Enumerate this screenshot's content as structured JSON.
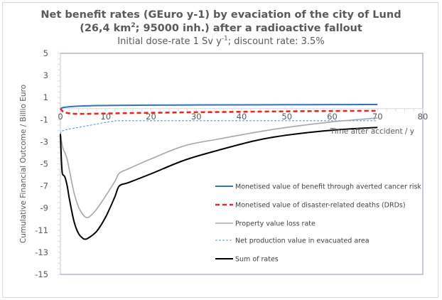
{
  "chart_data": {
    "type": "line",
    "title": "Net benefit rates (GEuro y-1) by evaciation of the city of Lund",
    "title_line2_prefix": "(26,4 km",
    "title_line2_sup": "2",
    "title_line2_suffix": "; 95000 inh.) after a radioactive fallout",
    "subtitle_prefix": "Initial dose-rate 1 Sv y",
    "subtitle_sup": "-1",
    "subtitle_suffix": "; discount rate: 3.5%",
    "xlabel": "Time after accident / y",
    "ylabel": "Cumulative Financial Outcome / Billio Euro",
    "xlim": [
      0,
      80
    ],
    "ylim": [
      -15,
      5
    ],
    "x_ticks": [
      0,
      10,
      20,
      30,
      40,
      50,
      60,
      70,
      80
    ],
    "y_ticks": [
      5,
      3,
      1,
      -1,
      -3,
      -5,
      -7,
      -9,
      -11,
      -13,
      -15
    ],
    "x_tick_labels": [
      "0",
      "10",
      "20",
      "30",
      "40",
      "50",
      "60",
      "70",
      "80"
    ],
    "y_tick_labels": [
      "5",
      "3",
      "1",
      "-1",
      "-3",
      "-5",
      "-7",
      "-9",
      "-11",
      "-13",
      "-15"
    ],
    "grid": false,
    "legend_position": "lower-right",
    "series": [
      {
        "name": "Monetised value of benefit through averted cancer risk",
        "color": "#2e75b6",
        "style": "solid",
        "x": [
          0,
          0.5,
          1,
          2,
          3,
          5,
          8,
          12,
          20,
          30,
          40,
          50,
          60,
          70
        ],
        "y": [
          0,
          0.08,
          0.12,
          0.17,
          0.2,
          0.24,
          0.27,
          0.29,
          0.31,
          0.33,
          0.34,
          0.35,
          0.36,
          0.37
        ]
      },
      {
        "name": "Monetised value of disaster-related deaths (DRDs)",
        "color": "#e8262a",
        "style": "dashed",
        "x": [
          0,
          0.5,
          1,
          2,
          3,
          5,
          8,
          12,
          20,
          30,
          40,
          50,
          60,
          70
        ],
        "y": [
          0,
          -0.25,
          -0.35,
          -0.43,
          -0.47,
          -0.48,
          -0.46,
          -0.43,
          -0.38,
          -0.33,
          -0.29,
          -0.25,
          -0.22,
          -0.2
        ]
      },
      {
        "name": "Property value loss rate",
        "color": "#a6a6a6",
        "style": "solid",
        "x": [
          0,
          0.5,
          1,
          1.5,
          2,
          3,
          4,
          5,
          5.75,
          6.5,
          8,
          10,
          12,
          13,
          15,
          20,
          27.5,
          35,
          43,
          50,
          60,
          70
        ],
        "y": [
          -2.3,
          -3.5,
          -4.0,
          -4.6,
          -5.6,
          -7.6,
          -8.9,
          -9.6,
          -9.85,
          -9.75,
          -9.1,
          -7.9,
          -6.6,
          -5.85,
          -5.45,
          -4.55,
          -3.35,
          -2.75,
          -2.15,
          -1.7,
          -1.2,
          -0.85
        ]
      },
      {
        "name": "Net production value in evacuated area",
        "color": "#5b9bd5",
        "style": "dotted",
        "x": [
          0,
          0.3,
          1,
          2,
          4,
          6,
          8,
          10,
          12,
          13,
          20,
          30,
          40,
          50,
          60,
          70
        ],
        "y": [
          -2.3,
          -2.05,
          -1.95,
          -1.85,
          -1.7,
          -1.55,
          -1.4,
          -1.25,
          -1.12,
          -1.1,
          -1.1,
          -1.1,
          -1.1,
          -1.1,
          -1.1,
          -1.1
        ]
      },
      {
        "name": "Sum of rates",
        "color": "#000000",
        "style": "solid",
        "x": [
          0,
          0.2,
          0.4,
          0.6,
          1,
          1.5,
          2,
          3,
          4,
          5,
          5.3,
          6,
          8,
          10,
          12,
          13,
          15,
          20,
          27.5,
          35,
          43,
          50,
          60,
          70
        ],
        "y": [
          -2.3,
          -4.5,
          -5.8,
          -6.0,
          -6.2,
          -7.0,
          -8.2,
          -10.2,
          -11.3,
          -11.75,
          -11.8,
          -11.75,
          -11.1,
          -9.8,
          -8.0,
          -7.0,
          -6.7,
          -5.9,
          -4.65,
          -3.75,
          -2.9,
          -2.4,
          -1.95,
          -1.7
        ]
      }
    ]
  }
}
